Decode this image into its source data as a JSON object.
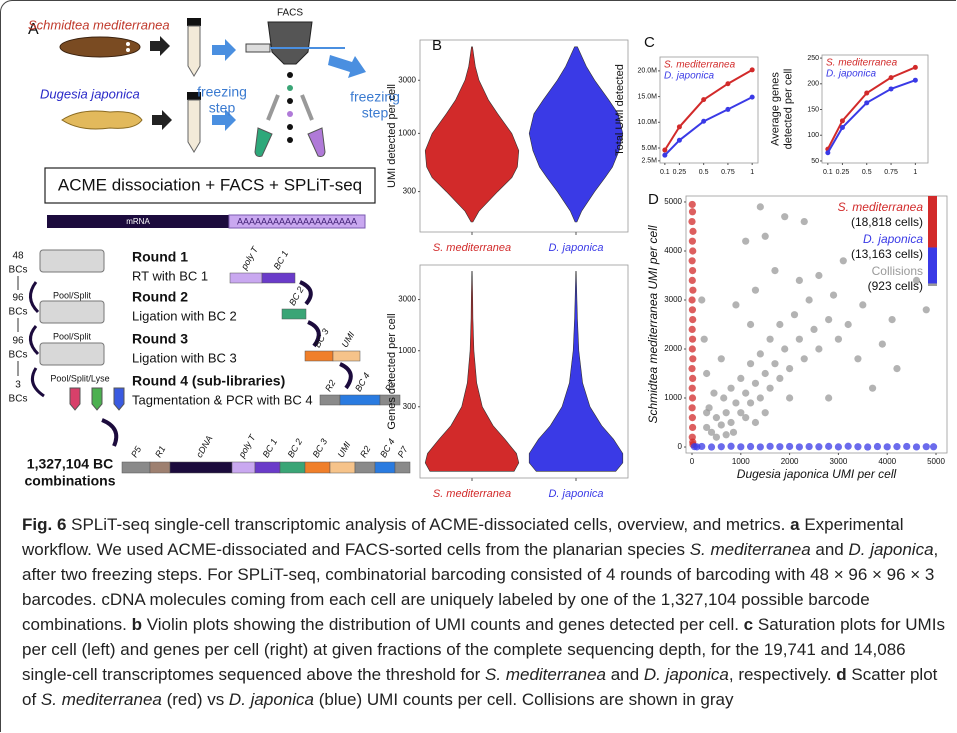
{
  "figure": {
    "panel_a": {
      "letter": "A",
      "species": [
        "Schmidtea mediterranea",
        "Dugesia japonica"
      ],
      "facs": "FACS",
      "freezing_steps": [
        [
          "freezing",
          "step"
        ],
        [
          "freezing",
          "step"
        ]
      ],
      "method": "ACME dissociation + FACS + SPLiT-seq",
      "mrna": "mRNA",
      "polya": "AAAAAAAAAAAAAAAAAAAA",
      "barcodes": [
        {
          "n": 48,
          "unit": "BCs"
        },
        {
          "n": 96,
          "unit": "BCs"
        },
        {
          "n": 96,
          "unit": "BCs"
        },
        {
          "n": 3,
          "unit": "BCs"
        }
      ],
      "actions": [
        "Pool/Split",
        "Pool/Split",
        "Pool/Split/Lyse"
      ],
      "rounds": [
        {
          "title": "Round 1",
          "step": "RT with BC 1",
          "parts": [
            "poly T",
            "BC 1"
          ]
        },
        {
          "title": "Round 2",
          "step": "Ligation with BC 2",
          "parts": [
            "BC 2"
          ]
        },
        {
          "title": "Round 3",
          "step": "Ligation with BC 3",
          "parts": [
            "BC 3",
            "UMI"
          ]
        },
        {
          "title": "Round 4 (sub-libraries)",
          "step": "Tagmentation & PCR with BC 4",
          "parts": [
            "R2",
            "BC 4",
            "P7"
          ]
        }
      ],
      "total": [
        "1,327,104 BC",
        "combinations"
      ],
      "construct": [
        "P5",
        "R1",
        "cDNA",
        "poly T",
        "BC 1",
        "BC 2",
        "BC 3",
        "UMI",
        "R2",
        "BC 4",
        "P7"
      ]
    }
  },
  "chart_data": [
    {
      "type": "violin",
      "panel": "B",
      "ylabel": "UMI detected per cell",
      "log_y": true,
      "ylim": [
        130,
        6900
      ],
      "yticks": [
        300,
        1000,
        3000
      ],
      "categories": [
        "S. mediterranea",
        "D. japonica"
      ],
      "colors": [
        "#d22a2a",
        "#3a3ae6"
      ],
      "levels": [
        160,
        200,
        300,
        400,
        500,
        700,
        1000,
        1500,
        2000,
        3000,
        4000,
        6000
      ],
      "density": [
        [
          0.02,
          0.15,
          0.55,
          0.85,
          0.97,
          1.0,
          0.85,
          0.55,
          0.35,
          0.15,
          0.07,
          0.01
        ],
        [
          0.02,
          0.12,
          0.4,
          0.62,
          0.78,
          0.92,
          1.0,
          0.9,
          0.7,
          0.4,
          0.22,
          0.03
        ]
      ]
    },
    {
      "type": "violin",
      "ylabel": "Genes detected per cell",
      "log_y": true,
      "ylim": [
        65,
        6300
      ],
      "yticks": [
        300,
        1000,
        3000
      ],
      "categories": [
        "S. mediterranea",
        "D. japonica"
      ],
      "colors": [
        "#d22a2a",
        "#3a3ae6"
      ],
      "levels": [
        75,
        90,
        110,
        150,
        200,
        300,
        500,
        1000,
        2000,
        3000,
        5500
      ],
      "density": [
        [
          0.9,
          1.0,
          0.95,
          0.7,
          0.45,
          0.22,
          0.1,
          0.04,
          0.02,
          0.015,
          0.005
        ],
        [
          0.85,
          1.0,
          1.0,
          0.8,
          0.55,
          0.3,
          0.14,
          0.06,
          0.03,
          0.02,
          0.005
        ]
      ]
    },
    {
      "type": "line",
      "panel": "C",
      "ylabel": [
        "Total UMI detected"
      ],
      "x": [
        0.1,
        0.25,
        0.5,
        0.75,
        1
      ],
      "xlim": [
        0.05,
        1.06
      ],
      "xticks": [
        0.1,
        0.25,
        0.5,
        0.75,
        1
      ],
      "ylim": [
        2080000,
        22700000
      ],
      "yticks": [
        {
          "value": 2500000,
          "label": "2.5M"
        },
        {
          "value": 5000000,
          "label": "5.0M"
        },
        {
          "value": 10000000,
          "label": "10.0M"
        },
        {
          "value": 15000000,
          "label": "15.0M"
        },
        {
          "value": 20000000,
          "label": "20.0M"
        }
      ],
      "series": [
        {
          "name": "S. mediterranea",
          "color": "#d22a2a",
          "values": [
            4600000,
            9100000,
            14400000,
            17500000,
            20200000
          ]
        },
        {
          "name": "D. japonica",
          "color": "#3a3ae6",
          "values": [
            3600000,
            6500000,
            10200000,
            12500000,
            14900000
          ]
        }
      ]
    },
    {
      "type": "line",
      "ylabel": [
        "Average genes",
        "detected per cell"
      ],
      "x": [
        0.1,
        0.25,
        0.5,
        0.75,
        1
      ],
      "xlim": [
        0.04,
        1.13
      ],
      "xticks": [
        0.1,
        0.25,
        0.5,
        0.75,
        1
      ],
      "ylim": [
        46,
        256
      ],
      "yticks": [
        50,
        100,
        150,
        200,
        250
      ],
      "series": [
        {
          "name": "S. mediterranea",
          "color": "#d22a2a",
          "values": [
            73,
            128,
            182,
            212,
            232
          ]
        },
        {
          "name": "D. japonica",
          "color": "#3a3ae6",
          "values": [
            66,
            115,
            163,
            190,
            207
          ]
        }
      ]
    },
    {
      "type": "scatter",
      "panel": "D",
      "xlabel": "Dugesia japonica UMI per cell",
      "ylabel": "Schmidtea mediterranea UMI per cell",
      "xlim": [
        -123,
        5225
      ],
      "ylim": [
        -122,
        5122
      ],
      "xticks": [
        0,
        1000,
        2000,
        3000,
        4000,
        5000
      ],
      "yticks": [
        0,
        1000,
        2000,
        3000,
        4000,
        5000
      ],
      "series": [
        {
          "name": "S. mediterranea",
          "color": "#d22a2a",
          "count": 18818,
          "count_label": "(18,818 cells)",
          "x": [
            5,
            10,
            0,
            20,
            8,
            15,
            3,
            12,
            6,
            18,
            2,
            9,
            14,
            4,
            11,
            7,
            16,
            1,
            13,
            5,
            10,
            3,
            8,
            12,
            6,
            15,
            20
          ],
          "values": [
            4950,
            4800,
            4600,
            4400,
            4200,
            4000,
            3800,
            3600,
            3400,
            3200,
            3000,
            2800,
            2600,
            2400,
            2200,
            2000,
            1800,
            1600,
            1400,
            1200,
            1000,
            800,
            600,
            400,
            200,
            100,
            50
          ]
        },
        {
          "name": "D. japonica",
          "color": "#3a3ae6",
          "count": 13163,
          "count_label": "(13,163 cells)",
          "x": [
            50,
            100,
            200,
            400,
            600,
            800,
            1000,
            1200,
            1400,
            1600,
            1800,
            2000,
            2200,
            2400,
            2600,
            2800,
            3000,
            3200,
            3400,
            3600,
            3800,
            4000,
            4200,
            4400,
            4600,
            4800,
            4950
          ],
          "values": [
            8,
            3,
            12,
            0,
            6,
            15,
            4,
            10,
            2,
            14,
            7,
            11,
            1,
            9,
            5,
            13,
            3,
            16,
            6,
            0,
            10,
            4,
            8,
            12,
            2,
            7,
            5
          ]
        },
        {
          "name": "Collisions",
          "color": "#9a9a9a",
          "count": 923,
          "count_label": "(923 cells)",
          "x": [
            300,
            400,
            500,
            600,
            350,
            700,
            800,
            900,
            1000,
            650,
            1100,
            1200,
            800,
            1300,
            1400,
            1000,
            1500,
            1600,
            1200,
            1700,
            1800,
            1400,
            1900,
            2000,
            1600,
            2200,
            2300,
            1800,
            2500,
            2600,
            2100,
            2800,
            2400,
            3000,
            2900,
            1300,
            1700,
            1500,
            1900,
            1100,
            1400,
            2300,
            3200,
            3500,
            3400,
            3900,
            4100,
            4600,
            4800,
            4200,
            3700,
            2800,
            500,
            700,
            300,
            250,
            600,
            200,
            900,
            1200,
            2600,
            3100,
            2200,
            1100,
            450,
            1500,
            2000,
            850,
            300,
            1300
          ],
          "values": [
            400,
            300,
            600,
            450,
            800,
            700,
            500,
            900,
            700,
            1000,
            1100,
            900,
            1200,
            1300,
            1000,
            1400,
            1500,
            1200,
            1700,
            1700,
            1400,
            1900,
            2000,
            1600,
            2200,
            2200,
            1800,
            2500,
            2400,
            2000,
            2700,
            2600,
            3000,
            2200,
            3100,
            3200,
            3600,
            4300,
            4700,
            4200,
            4900,
            4600,
            2500,
            2900,
            1800,
            2100,
            2600,
            3400,
            2800,
            1600,
            1200,
            1000,
            200,
            250,
            1500,
            2200,
            1800,
            3000,
            2900,
            2500,
            3500,
            3800,
            3400,
            600,
            1100,
            700,
            1000,
            300,
            700,
            500
          ]
        }
      ]
    }
  ],
  "caption": {
    "runs": [
      {
        "text": "Fig. 6",
        "style": "bold"
      },
      {
        "text": " SPLiT-seq single-cell transcriptomic analysis of ACME-dissociated cells, overview, and metrics. ",
        "style": "normal"
      },
      {
        "text": "a",
        "style": "bold"
      },
      {
        "text": " Experimental workflow. We used ACME-dissociated and FACS-sorted cells from the planarian species ",
        "style": "normal"
      },
      {
        "text": "S. mediterranea",
        "style": "italic"
      },
      {
        "text": " and ",
        "style": "normal"
      },
      {
        "text": "D. japonica",
        "style": "italic"
      },
      {
        "text": ", after two freezing steps. For SPLiT-seq, combinatorial barcoding consisted of 4 rounds of barcoding with 48 × 96 × 96 × 3 barcodes. cDNA molecules coming from each cell are uniquely labeled by one of the 1,327,104 possible barcode combinations. ",
        "style": "normal"
      },
      {
        "text": "b",
        "style": "bold"
      },
      {
        "text": " Violin plots showing the distribution of UMI counts and genes detected per cell. ",
        "style": "normal"
      },
      {
        "text": "c",
        "style": "bold"
      },
      {
        "text": " Saturation plots for UMIs per cell (left) and genes per cell (right) at given fractions of the complete sequencing depth, for the 19,741 and 14,086 single-cell transcriptomes sequenced above the threshold for ",
        "style": "normal"
      },
      {
        "text": "S. mediterranea",
        "style": "italic"
      },
      {
        "text": " and ",
        "style": "normal"
      },
      {
        "text": "D. japonica",
        "style": "italic"
      },
      {
        "text": ", respectively. ",
        "style": "normal"
      },
      {
        "text": "d",
        "style": "bold"
      },
      {
        "text": " Scatter plot of ",
        "style": "normal"
      },
      {
        "text": "S. mediterranea",
        "style": "italic"
      },
      {
        "text": " (red) vs ",
        "style": "normal"
      },
      {
        "text": "D. japonica",
        "style": "italic"
      },
      {
        "text": " (blue) UMI counts per cell. Collisions are shown in gray",
        "style": "normal"
      }
    ]
  }
}
